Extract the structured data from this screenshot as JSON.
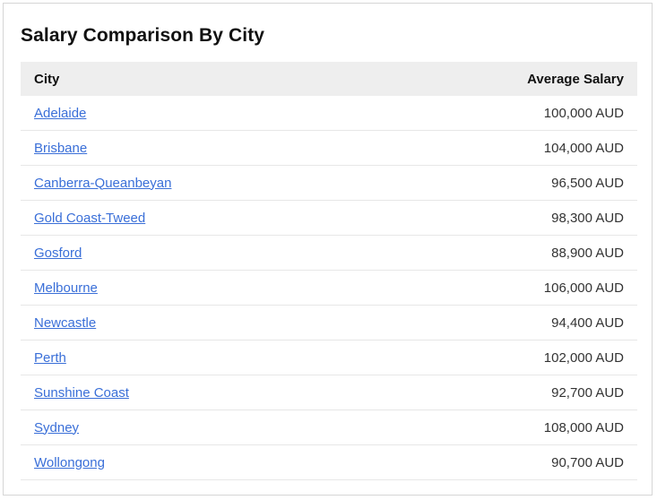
{
  "title": "Salary Comparison By City",
  "table": {
    "headers": {
      "city": "City",
      "salary": "Average Salary"
    },
    "rows": [
      {
        "city": "Adelaide",
        "salary": "100,000 AUD"
      },
      {
        "city": "Brisbane",
        "salary": "104,000 AUD"
      },
      {
        "city": "Canberra-Queanbeyan",
        "salary": "96,500 AUD"
      },
      {
        "city": "Gold Coast-Tweed",
        "salary": "98,300 AUD"
      },
      {
        "city": "Gosford",
        "salary": "88,900 AUD"
      },
      {
        "city": "Melbourne",
        "salary": "106,000 AUD"
      },
      {
        "city": "Newcastle",
        "salary": "94,400 AUD"
      },
      {
        "city": "Perth",
        "salary": "102,000 AUD"
      },
      {
        "city": "Sunshine Coast",
        "salary": "92,700 AUD"
      },
      {
        "city": "Sydney",
        "salary": "108,000 AUD"
      },
      {
        "city": "Wollongong",
        "salary": "90,700 AUD"
      }
    ]
  },
  "colors": {
    "link": "#3a6fd8",
    "header_bg": "#eeeeee"
  }
}
